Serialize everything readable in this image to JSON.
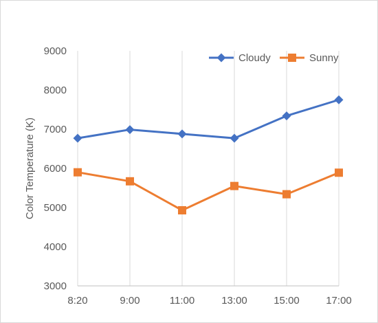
{
  "chart_data": {
    "type": "line",
    "title": "",
    "xlabel": "",
    "ylabel": "Color Temperature (K)",
    "categories": [
      "8:20",
      "9:00",
      "11:00",
      "13:00",
      "15:00",
      "17:00"
    ],
    "ylim": [
      3000,
      9000
    ],
    "yticks": [
      3000,
      4000,
      5000,
      6000,
      7000,
      8000,
      9000
    ],
    "grid": "vertical",
    "legend": "top-right",
    "series": [
      {
        "name": "Cloudy",
        "marker": "diamond",
        "color": "#4472C4",
        "values": [
          6770,
          6990,
          6880,
          6770,
          7340,
          7750
        ]
      },
      {
        "name": "Sunny",
        "marker": "square",
        "color": "#ED7D31",
        "values": [
          5900,
          5670,
          4930,
          5550,
          5340,
          5890
        ]
      }
    ]
  }
}
